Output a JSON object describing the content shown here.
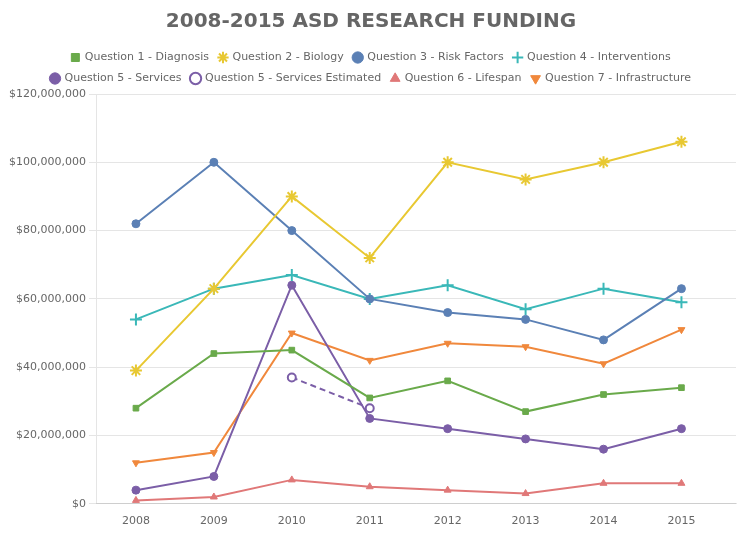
{
  "chart_data": {
    "type": "line",
    "title": "2008-2015 ASD RESEARCH FUNDING",
    "x": [
      2008,
      2009,
      2010,
      2011,
      2012,
      2013,
      2014,
      2015
    ],
    "series": [
      {
        "name": "Question 1 - Diagnosis",
        "color": "#6aaa4b",
        "marker": "square",
        "line_style": "solid",
        "values": [
          28000000,
          44000000,
          45000000,
          31000000,
          36000000,
          27000000,
          32000000,
          34000000
        ]
      },
      {
        "name": "Question 2 - Biology",
        "color": "#e8c832",
        "marker": "star",
        "line_style": "solid",
        "values": [
          39000000,
          63000000,
          90000000,
          72000000,
          100000000,
          95000000,
          100000000,
          106000000
        ]
      },
      {
        "name": "Question 3 - Risk Factors",
        "color": "#5b80b5",
        "marker": "circle",
        "line_style": "solid",
        "values": [
          82000000,
          100000000,
          80000000,
          60000000,
          56000000,
          54000000,
          48000000,
          63000000
        ]
      },
      {
        "name": "Question 4 - Interventions",
        "color": "#3ab8b8",
        "marker": "plus",
        "line_style": "solid",
        "values": [
          54000000,
          63000000,
          67000000,
          60000000,
          64000000,
          57000000,
          63000000,
          59000000
        ]
      },
      {
        "name": "Question 5 - Services",
        "color": "#7b5ea7",
        "marker": "circle",
        "line_style": "solid",
        "values": [
          4000000,
          8000000,
          64000000,
          25000000,
          22000000,
          19000000,
          16000000,
          22000000
        ]
      },
      {
        "name": "Question 5 - Services Estimated",
        "color": "#7b5ea7",
        "marker": "circle_open",
        "line_style": "dashed",
        "x": [
          2010,
          2011
        ],
        "values": [
          37000000,
          28000000
        ]
      },
      {
        "name": "Question 6 - Lifespan",
        "color": "#e07878",
        "marker": "triangle",
        "line_style": "solid",
        "values": [
          1000000,
          2000000,
          7000000,
          5000000,
          4000000,
          3000000,
          6000000,
          6000000
        ]
      },
      {
        "name": "Question 7 - Infrastructure",
        "color": "#f0883c",
        "marker": "triangle_down",
        "line_style": "solid",
        "values": [
          12000000,
          15000000,
          50000000,
          42000000,
          47000000,
          46000000,
          41000000,
          51000000
        ]
      }
    ],
    "xlim": [
      2007.5,
      2015.7
    ],
    "xticks": [
      2008,
      2009,
      2010,
      2011,
      2012,
      2013,
      2014,
      2015
    ],
    "ylim": [
      0,
      120000000
    ],
    "yticks": [
      {
        "value": 0,
        "label": "$0"
      },
      {
        "value": 20000000,
        "label": "$20,000,000"
      },
      {
        "value": 40000000,
        "label": "$40,000,000"
      },
      {
        "value": 60000000,
        "label": "$60,000,000"
      },
      {
        "value": 80000000,
        "label": "$80,000,000"
      },
      {
        "value": 100000000,
        "label": "$100,000,000"
      },
      {
        "value": 120000000,
        "label": "$120,000,000"
      }
    ],
    "grid": "y",
    "legend": "top"
  }
}
